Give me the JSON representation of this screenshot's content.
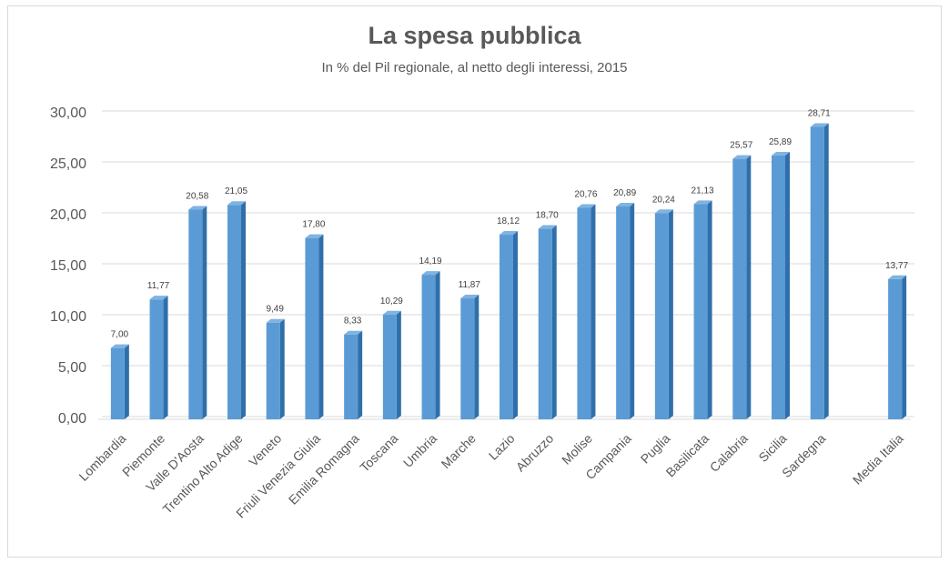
{
  "chart_data": {
    "type": "bar",
    "title": "La spesa pubblica",
    "subtitle": "In % del Pil regionale, al netto degli interessi, 2015",
    "xlabel": "",
    "ylabel": "",
    "ylim": [
      0,
      30
    ],
    "yticks": [
      "0,00",
      "5,00",
      "10,00",
      "15,00",
      "20,00",
      "25,00",
      "30,00"
    ],
    "grid": true,
    "legend": "none",
    "bar_color": "#5b9bd5",
    "categories": [
      "Lombardia",
      "Piemonte",
      "Valle D'Aosta",
      "Trentino Alto Adige",
      "Veneto",
      "Friuli Venezia Giulia",
      "Emilia Romagna",
      "Toscana",
      "Umbria",
      "Marche",
      "Lazio",
      "Abruzzo",
      "Molise",
      "Campania",
      "Puglia",
      "Basilicata",
      "Calabria",
      "Sicilia",
      "Sardegna",
      "",
      "Media Italia"
    ],
    "values": [
      7.0,
      11.77,
      20.58,
      21.05,
      9.49,
      17.8,
      8.33,
      10.29,
      14.19,
      11.87,
      18.12,
      18.7,
      20.76,
      20.89,
      20.24,
      21.13,
      25.57,
      25.89,
      28.71,
      null,
      13.77
    ],
    "data_labels": [
      "7,00",
      "11,77",
      "20,58",
      "21,05",
      "9,49",
      "17,80",
      "8,33",
      "10,29",
      "14,19",
      "11,87",
      "18,12",
      "18,70",
      "20,76",
      "20,89",
      "20,24",
      "21,13",
      "25,57",
      "25,89",
      "28,71",
      "",
      "13,77"
    ]
  }
}
